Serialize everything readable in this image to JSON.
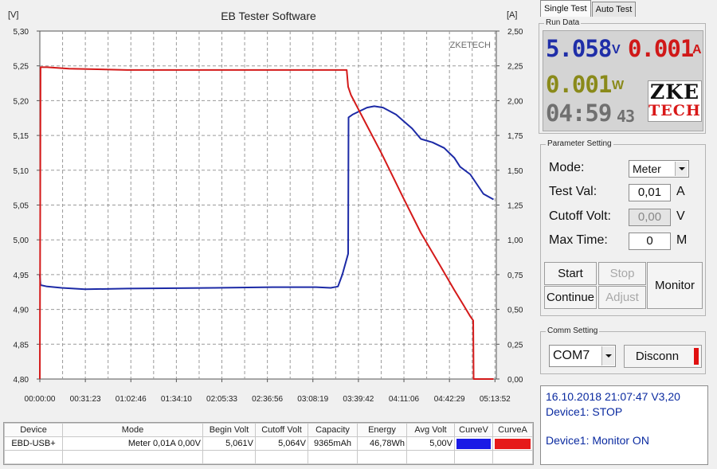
{
  "chart": {
    "title": "EB Tester Software",
    "watermark": "ZKETECH",
    "left_unit": "[V]",
    "right_unit": "[A]",
    "left_ticks": [
      "5,30",
      "5,25",
      "5,20",
      "5,15",
      "5,10",
      "5,05",
      "5,00",
      "4,95",
      "4,90",
      "4,85",
      "4,80"
    ],
    "right_ticks": [
      "2,50",
      "2,25",
      "2,00",
      "1,75",
      "1,50",
      "1,25",
      "1,00",
      "0,75",
      "0,50",
      "0,25",
      "0,00"
    ],
    "x_ticks": [
      "00:00:00",
      "00:31:23",
      "01:02:46",
      "01:34:10",
      "02:05:33",
      "02:36:56",
      "03:08:19",
      "03:39:42",
      "04:11:06",
      "04:42:29",
      "05:13:52"
    ],
    "voltage_color": "#1c2aa6",
    "current_color": "#d41a1a"
  },
  "chart_data": {
    "type": "line",
    "title": "EB Tester Software",
    "xlabel": "",
    "ylabel": "[V]",
    "y2label": "[A]",
    "x_ticks": [
      "00:00:00",
      "00:31:23",
      "01:02:46",
      "01:34:10",
      "02:05:33",
      "02:36:56",
      "03:08:19",
      "03:39:42",
      "04:11:06",
      "04:42:29",
      "05:13:52"
    ],
    "xlim_minutes": [
      0,
      313.9
    ],
    "ylim": [
      4.8,
      5.3
    ],
    "y2lim": [
      0.0,
      2.5
    ],
    "grid": true,
    "series": [
      {
        "name": "CurveV",
        "axis": "left",
        "x_minutes": [
          0,
          0.5,
          5,
          15,
          31,
          60,
          120,
          160,
          190,
          200,
          205,
          208,
          212,
          212.3,
          215,
          220,
          225,
          230,
          236,
          245,
          256,
          262,
          270,
          278,
          285,
          289,
          296,
          305,
          312
        ],
        "y": [
          4.95,
          4.935,
          4.933,
          4.931,
          4.929,
          4.93,
          4.931,
          4.932,
          4.932,
          4.931,
          4.933,
          4.95,
          4.98,
          5.176,
          5.18,
          5.185,
          5.19,
          5.192,
          5.19,
          5.18,
          5.16,
          5.145,
          5.14,
          5.132,
          5.118,
          5.105,
          5.094,
          5.066,
          5.058
        ]
      },
      {
        "name": "CurveA",
        "axis": "right",
        "x_minutes": [
          0,
          0.5,
          5,
          20,
          60,
          120,
          160,
          190,
          211,
          212,
          214,
          218,
          225,
          235,
          250,
          262,
          275,
          285,
          292,
          296,
          298,
          298.3,
          312
        ],
        "y": [
          0.0,
          2.24,
          2.24,
          2.23,
          2.22,
          2.22,
          2.22,
          2.22,
          2.22,
          2.1,
          2.04,
          1.96,
          1.82,
          1.62,
          1.3,
          1.05,
          0.82,
          0.64,
          0.52,
          0.45,
          0.42,
          0.0,
          0.0
        ]
      }
    ]
  },
  "results": {
    "headers": [
      "Device",
      "Mode",
      "Begin Volt",
      "Cutoff Volt",
      "Capacity",
      "Energy",
      "Avg Volt",
      "CurveV",
      "CurveA"
    ],
    "row": {
      "device": "EBD-USB+",
      "mode": "Meter 0,01A 0,00V",
      "begin_volt": "5,061V",
      "cutoff_volt": "5,064V",
      "capacity": "9365mAh",
      "energy": "46,78Wh",
      "avg_volt": "5,00V",
      "curve_v_color": "#1a1ae6",
      "curve_a_color": "#e61a1a"
    }
  },
  "tabs": {
    "single": "Single Test",
    "auto": "Auto Test"
  },
  "run_data": {
    "label": "Run Data",
    "voltage": "5.058",
    "voltage_unit": "V",
    "current": "0.001",
    "current_unit": "A",
    "power": "0.001",
    "power_unit": "W",
    "time_hm": "04:59",
    "time_s": "43",
    "logo_top": "ZKE",
    "logo_bottom": "TECH",
    "colors": {
      "voltage": "#1f2ea8",
      "current": "#d01818",
      "power": "#8a8a1a",
      "time": "#707070"
    }
  },
  "params": {
    "label": "Parameter Setting",
    "mode_label": "Mode:",
    "mode_value": "Meter",
    "test_val_label": "Test Val:",
    "test_val": "0,01",
    "test_val_unit": "A",
    "cutoff_label": "Cutoff Volt:",
    "cutoff_val": "0,00",
    "cutoff_unit": "V",
    "max_time_label": "Max Time:",
    "max_time": "0",
    "max_time_unit": "M",
    "start": "Start",
    "stop": "Stop",
    "continue": "Continue",
    "adjust": "Adjust",
    "monitor": "Monitor"
  },
  "comm": {
    "label": "Comm Setting",
    "port": "COM7",
    "disconn": "Disconn",
    "indicator_color": "#e01010"
  },
  "log": {
    "line1": "16.10.2018 21:07:47  V3,20",
    "line2": "Device1: STOP",
    "line3": "Device1: Monitor ON"
  }
}
